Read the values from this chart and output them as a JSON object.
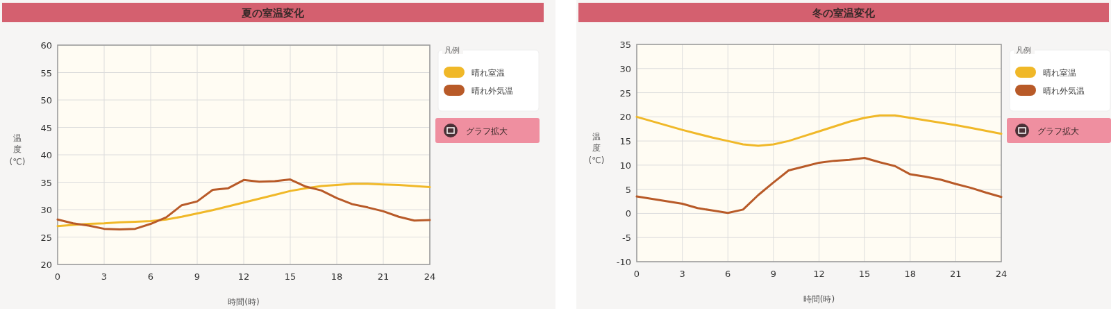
{
  "chart_data": [
    {
      "type": "line",
      "title": "夏の室温変化",
      "xlabel": "時間(時)",
      "ylabel": "温度(℃)",
      "legend_title": "凡例",
      "legend": "right",
      "grid": true,
      "x": [
        0,
        1,
        2,
        3,
        4,
        5,
        6,
        7,
        8,
        9,
        10,
        11,
        12,
        13,
        14,
        15,
        16,
        17,
        18,
        19,
        20,
        21,
        22,
        23,
        24
      ],
      "xlim": [
        0,
        24
      ],
      "xticks": [
        0,
        3,
        6,
        9,
        12,
        15,
        18,
        21,
        24
      ],
      "ylim": [
        20,
        60
      ],
      "yticks": [
        20,
        25,
        30,
        35,
        40,
        45,
        50,
        55,
        60
      ],
      "series": [
        {
          "name": "晴れ室温",
          "color": "#f0b828",
          "values": [
            27.0,
            27.2,
            27.4,
            27.5,
            27.7,
            27.8,
            27.9,
            28.2,
            28.7,
            29.3,
            29.9,
            30.6,
            31.3,
            32.0,
            32.7,
            33.4,
            33.9,
            34.3,
            34.5,
            34.7,
            34.7,
            34.6,
            34.5,
            34.3,
            34.1
          ]
        },
        {
          "name": "晴れ外気温",
          "color": "#b85a28",
          "values": [
            28.2,
            27.5,
            27.1,
            26.5,
            26.4,
            26.5,
            27.4,
            28.6,
            30.8,
            31.5,
            33.6,
            33.9,
            35.4,
            35.1,
            35.2,
            35.5,
            34.2,
            33.5,
            32.1,
            31.0,
            30.4,
            29.7,
            28.7,
            28.0,
            28.1
          ]
        }
      ],
      "annotations": [
        "グラフ拡大"
      ]
    },
    {
      "type": "line",
      "title": "冬の室温変化",
      "xlabel": "時間(時)",
      "ylabel": "温度(℃)",
      "legend_title": "凡例",
      "legend": "right",
      "grid": true,
      "x": [
        0,
        1,
        2,
        3,
        4,
        5,
        6,
        7,
        8,
        9,
        10,
        11,
        12,
        13,
        14,
        15,
        16,
        17,
        18,
        19,
        20,
        21,
        22,
        23,
        24
      ],
      "xlim": [
        0,
        24
      ],
      "xticks": [
        0,
        3,
        6,
        9,
        12,
        15,
        18,
        21,
        24
      ],
      "ylim": [
        -10,
        35
      ],
      "yticks": [
        -10,
        -5,
        0,
        5,
        10,
        15,
        20,
        25,
        30,
        35
      ],
      "series": [
        {
          "name": "晴れ室温",
          "color": "#f0b828",
          "values": [
            20.0,
            19.1,
            18.2,
            17.3,
            16.5,
            15.7,
            15.0,
            14.3,
            14.0,
            14.3,
            15.0,
            16.0,
            17.0,
            18.0,
            19.0,
            19.8,
            20.3,
            20.3,
            19.8,
            19.3,
            18.8,
            18.3,
            17.7,
            17.1,
            16.5
          ]
        },
        {
          "name": "晴れ外気温",
          "color": "#b85a28",
          "values": [
            3.5,
            3.0,
            2.5,
            2.0,
            1.1,
            0.6,
            0.1,
            0.8,
            3.8,
            6.4,
            8.9,
            9.7,
            10.5,
            10.9,
            11.1,
            11.5,
            10.6,
            9.8,
            8.1,
            7.6,
            7.0,
            6.1,
            5.3,
            4.3,
            3.4
          ]
        }
      ],
      "annotations": [
        "グラフ拡大"
      ]
    }
  ]
}
